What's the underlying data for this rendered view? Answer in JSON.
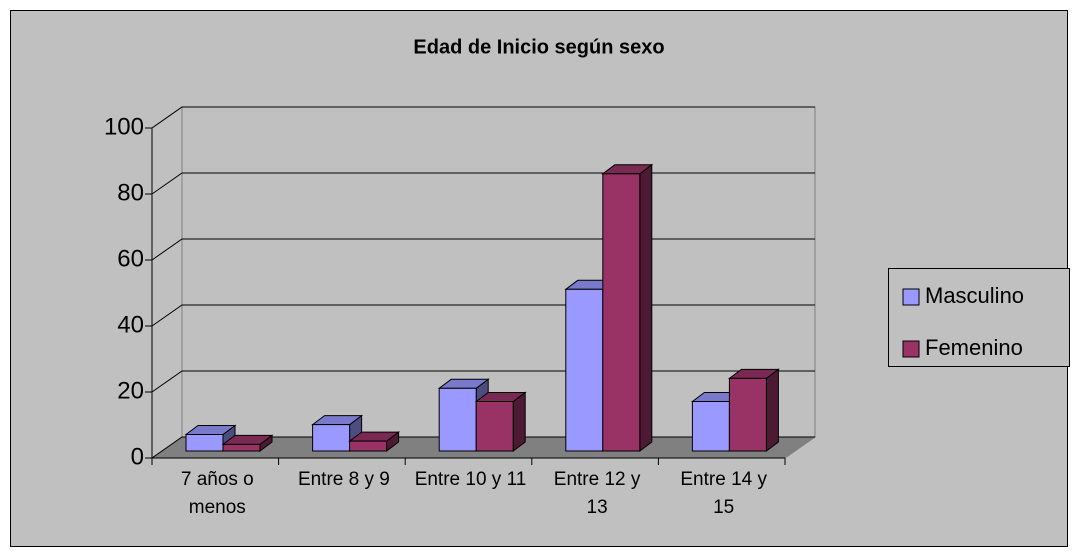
{
  "chart_data": {
    "type": "bar3d",
    "title": "Edad de Inicio según sexo",
    "categories": [
      "7 años o menos",
      "Entre 8 y 9",
      "Entre 10 y 11",
      "Entre 12 y 13",
      "Entre 14 y 15"
    ],
    "series": [
      {
        "name": "Masculino",
        "color": "#9999ff",
        "values": [
          5,
          8,
          19,
          49,
          15
        ]
      },
      {
        "name": "Femenino",
        "color": "#993366",
        "values": [
          2,
          3,
          15,
          84,
          22
        ]
      }
    ],
    "ylim": [
      0,
      100
    ],
    "yticks": [
      0,
      20,
      40,
      60,
      80,
      100
    ],
    "grid": true,
    "legend": "right"
  }
}
